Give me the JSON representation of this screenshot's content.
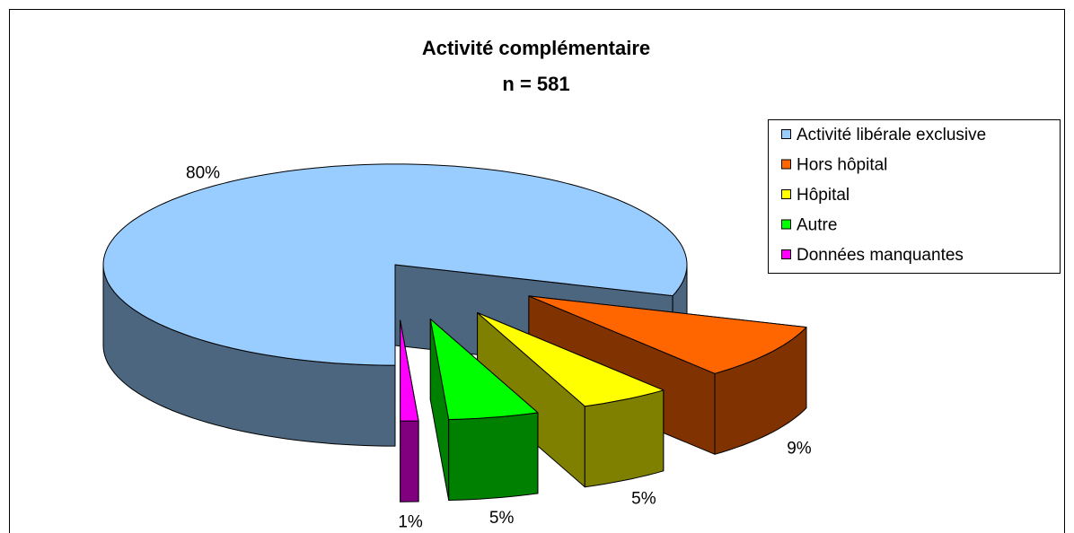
{
  "chart_data": {
    "type": "pie",
    "title": "Activité complémentaire",
    "subtitle": "n = 581",
    "categories": [
      "Activité libérale exclusive",
      "Hors hôpital",
      "Hôpital",
      "Autre",
      "Données manquantes"
    ],
    "values": [
      80,
      9,
      5,
      5,
      1
    ],
    "value_labels": [
      "80%",
      "9%",
      "5%",
      "5%",
      "1%"
    ],
    "colors": [
      "#99ccff",
      "#ff6600",
      "#ffff00",
      "#00ff00",
      "#ff00ff"
    ],
    "legend": "right"
  }
}
